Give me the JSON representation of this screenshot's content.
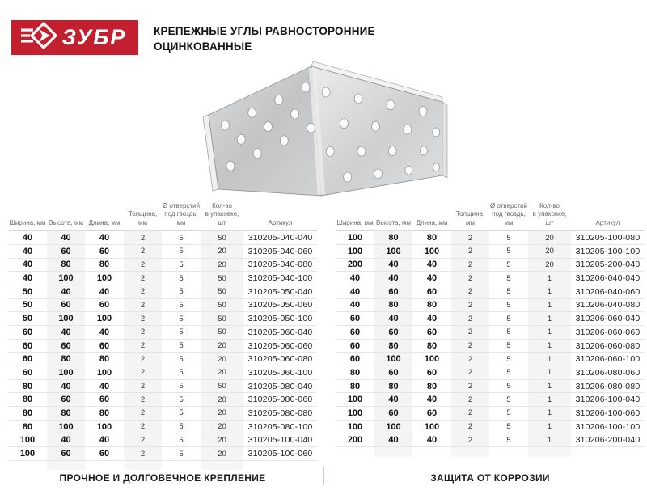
{
  "brand": {
    "logo_text": "ЗУБР",
    "brand_red": "#c3202f"
  },
  "header": {
    "title_line1": "КРЕПЕЖНЫЕ УГЛЫ РАВНОСТОРОННИЕ",
    "title_line2": "ОЦИНКОВАННЫЕ"
  },
  "product_image": {
    "description": "оцинкованный равносторонний крепежный угол с перфорацией"
  },
  "columns": [
    "Ширина, мм",
    "Высота, мм",
    "Длина, мм",
    "Толщина, мм",
    "Ø отверстий\nпод гвоздь, мм",
    "Кол-во\nв упаковке, шт",
    "Артикул"
  ],
  "tables": {
    "left_table": {
      "rows": [
        [
          "40",
          "40",
          "40",
          "2",
          "5",
          "50",
          "310205-040-040"
        ],
        [
          "40",
          "60",
          "60",
          "2",
          "5",
          "20",
          "310205-040-060"
        ],
        [
          "40",
          "80",
          "80",
          "2",
          "5",
          "20",
          "310205-040-080"
        ],
        [
          "40",
          "100",
          "100",
          "2",
          "5",
          "50",
          "310205-040-100"
        ],
        [
          "50",
          "40",
          "40",
          "2",
          "5",
          "50",
          "310205-050-040"
        ],
        [
          "50",
          "60",
          "60",
          "2",
          "5",
          "50",
          "310205-050-060"
        ],
        [
          "50",
          "100",
          "100",
          "2",
          "5",
          "50",
          "310205-050-100"
        ],
        [
          "60",
          "40",
          "40",
          "2",
          "5",
          "50",
          "310205-060-040"
        ],
        [
          "60",
          "60",
          "60",
          "2",
          "5",
          "20",
          "310205-060-060"
        ],
        [
          "60",
          "80",
          "80",
          "2",
          "5",
          "20",
          "310205-060-080"
        ],
        [
          "60",
          "100",
          "100",
          "2",
          "5",
          "20",
          "310205-060-100"
        ],
        [
          "80",
          "40",
          "40",
          "2",
          "5",
          "50",
          "310205-080-040"
        ],
        [
          "80",
          "60",
          "60",
          "2",
          "5",
          "20",
          "310205-080-060"
        ],
        [
          "80",
          "80",
          "80",
          "2",
          "5",
          "20",
          "310205-080-080"
        ],
        [
          "80",
          "100",
          "100",
          "2",
          "5",
          "20",
          "310205-080-100"
        ],
        [
          "100",
          "40",
          "40",
          "2",
          "5",
          "20",
          "310205-100-040"
        ],
        [
          "100",
          "60",
          "60",
          "2",
          "5",
          "20",
          "310205-100-060"
        ]
      ]
    },
    "right_table": {
      "rows": [
        [
          "100",
          "80",
          "80",
          "2",
          "5",
          "20",
          "310205-100-080"
        ],
        [
          "100",
          "100",
          "100",
          "2",
          "5",
          "20",
          "310205-100-100"
        ],
        [
          "200",
          "40",
          "40",
          "2",
          "5",
          "20",
          "310205-200-040"
        ],
        [
          "40",
          "40",
          "40",
          "2",
          "5",
          "1",
          "310206-040-040"
        ],
        [
          "40",
          "60",
          "60",
          "2",
          "5",
          "1",
          "310206-040-060"
        ],
        [
          "40",
          "80",
          "80",
          "2",
          "5",
          "1",
          "310206-040-080"
        ],
        [
          "60",
          "40",
          "40",
          "2",
          "5",
          "1",
          "310206-060-040"
        ],
        [
          "60",
          "60",
          "60",
          "2",
          "5",
          "1",
          "310206-060-060"
        ],
        [
          "60",
          "80",
          "80",
          "2",
          "5",
          "1",
          "310206-060-080"
        ],
        [
          "60",
          "100",
          "100",
          "2",
          "5",
          "1",
          "310206-060-100"
        ],
        [
          "80",
          "60",
          "60",
          "2",
          "5",
          "1",
          "310206-080-060"
        ],
        [
          "80",
          "80",
          "80",
          "2",
          "5",
          "1",
          "310206-080-080"
        ],
        [
          "100",
          "40",
          "40",
          "2",
          "5",
          "1",
          "310206-100-040"
        ],
        [
          "100",
          "60",
          "60",
          "2",
          "5",
          "1",
          "310206-100-060"
        ],
        [
          "100",
          "100",
          "100",
          "2",
          "5",
          "1",
          "310206-100-100"
        ],
        [
          "200",
          "40",
          "40",
          "2",
          "5",
          "1",
          "310206-200-040"
        ]
      ]
    }
  },
  "footers": {
    "left": "ПРОЧНОЕ И ДОЛГОВЕЧНОЕ КРЕПЛЕНИЕ",
    "right": "ЗАЩИТА ОТ КОРРОЗИИ"
  }
}
